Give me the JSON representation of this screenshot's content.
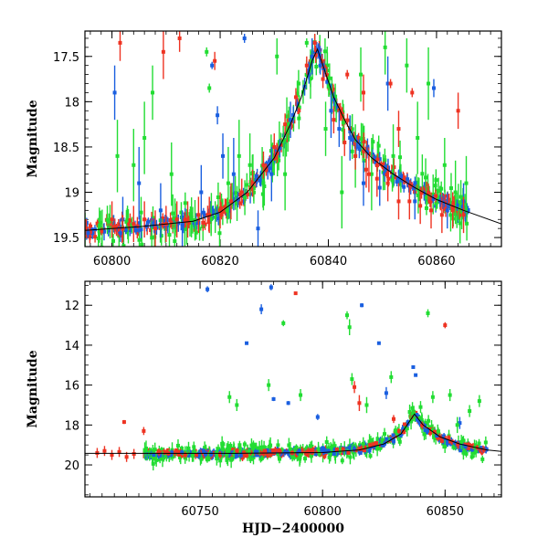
{
  "chart_data": [
    {
      "type": "scatter",
      "title": "",
      "xlabel": "",
      "ylabel": "Magnitude",
      "xlim": [
        60795,
        60872
      ],
      "ylim": [
        19.6,
        17.22
      ],
      "y_inverted": true,
      "xticks": [
        60800,
        60820,
        60840,
        60860
      ],
      "yticks": [
        17.5,
        18,
        18.5,
        19,
        19.5
      ],
      "legend": "none",
      "series": [
        {
          "color": "#1a5fe0",
          "points": [
            {
              "x": 60800.5,
              "y": 17.9,
              "e": 0.3
            },
            {
              "x": 60802.0,
              "y": 19.3,
              "e": 0.25
            },
            {
              "x": 60805.0,
              "y": 18.9,
              "e": 0.4
            },
            {
              "x": 60809.0,
              "y": 19.2,
              "e": 0.3
            },
            {
              "x": 60813.0,
              "y": 19.4,
              "e": 0.2
            },
            {
              "x": 60816.5,
              "y": 19.0,
              "e": 0.3
            },
            {
              "x": 60818.5,
              "y": 17.6,
              "e": 0.04
            },
            {
              "x": 60819.5,
              "y": 18.15,
              "e": 0.1
            },
            {
              "x": 60820.5,
              "y": 18.6,
              "e": 0.25
            },
            {
              "x": 60822.5,
              "y": 18.8,
              "e": 0.4
            },
            {
              "x": 60824.5,
              "y": 17.3,
              "e": 0.05
            },
            {
              "x": 60827.0,
              "y": 19.4,
              "e": 0.2
            },
            {
              "x": 60829.5,
              "y": 18.8,
              "e": 0.3
            },
            {
              "x": 60833.0,
              "y": 18.2,
              "e": 0.2
            },
            {
              "x": 60837.0,
              "y": 17.5,
              "e": 0.2
            },
            {
              "x": 60838.5,
              "y": 17.6,
              "e": 0.1
            },
            {
              "x": 60840.5,
              "y": 18.1,
              "e": 0.3
            },
            {
              "x": 60842.0,
              "y": 18.3,
              "e": 0.2
            },
            {
              "x": 60844.0,
              "y": 18.4,
              "e": 0.25
            },
            {
              "x": 60846.5,
              "y": 18.9,
              "e": 0.25
            },
            {
              "x": 60849.5,
              "y": 18.95,
              "e": 0.2
            },
            {
              "x": 60851.0,
              "y": 17.8,
              "e": 0.3
            },
            {
              "x": 60856.0,
              "y": 19.1,
              "e": 0.2
            },
            {
              "x": 60859.5,
              "y": 17.85,
              "e": 0.1
            },
            {
              "x": 60862.0,
              "y": 19.2,
              "e": 0.2
            },
            {
              "x": 60865.0,
              "y": 19.1,
              "e": 0.2
            }
          ]
        },
        {
          "color": "#22dd33",
          "points": [
            {
              "x": 60801.0,
              "y": 18.6,
              "e": 0.4
            },
            {
              "x": 60804.0,
              "y": 18.7,
              "e": 0.4
            },
            {
              "x": 60806.0,
              "y": 18.4,
              "e": 0.4
            },
            {
              "x": 60807.5,
              "y": 17.9,
              "e": 0.3
            },
            {
              "x": 60811.0,
              "y": 18.8,
              "e": 0.35
            },
            {
              "x": 60817.5,
              "y": 17.45,
              "e": 0.05
            },
            {
              "x": 60818.0,
              "y": 17.85,
              "e": 0.05
            },
            {
              "x": 60821.5,
              "y": 18.9,
              "e": 0.4
            },
            {
              "x": 60823.5,
              "y": 18.6,
              "e": 0.4
            },
            {
              "x": 60825.5,
              "y": 18.7,
              "e": 0.35
            },
            {
              "x": 60828.0,
              "y": 18.9,
              "e": 0.3
            },
            {
              "x": 60830.5,
              "y": 17.5,
              "e": 0.2
            },
            {
              "x": 60832.0,
              "y": 18.8,
              "e": 0.4
            },
            {
              "x": 60834.5,
              "y": 17.8,
              "e": 0.15
            },
            {
              "x": 60836.0,
              "y": 17.35,
              "e": 0.05
            },
            {
              "x": 60839.5,
              "y": 18.3,
              "e": 0.3
            },
            {
              "x": 60842.5,
              "y": 19.0,
              "e": 0.4
            },
            {
              "x": 60845.0,
              "y": 18.6,
              "e": 0.35
            },
            {
              "x": 60846.0,
              "y": 17.7,
              "e": 0.3
            },
            {
              "x": 60848.0,
              "y": 18.8,
              "e": 0.4
            },
            {
              "x": 60850.5,
              "y": 17.4,
              "e": 0.3
            },
            {
              "x": 60852.0,
              "y": 18.6,
              "e": 0.35
            },
            {
              "x": 60854.5,
              "y": 17.6,
              "e": 0.3
            },
            {
              "x": 60856.5,
              "y": 18.4,
              "e": 0.4
            },
            {
              "x": 60858.5,
              "y": 17.8,
              "e": 0.4
            },
            {
              "x": 60861.5,
              "y": 18.7,
              "e": 0.3
            },
            {
              "x": 60863.5,
              "y": 19.0,
              "e": 0.35
            },
            {
              "x": 60865.5,
              "y": 18.9,
              "e": 0.3
            }
          ]
        },
        {
          "color": "#ee3322",
          "points": [
            {
              "x": 60800.0,
              "y": 19.3,
              "e": 0.2
            },
            {
              "x": 60802.0,
              "y": 19.4,
              "e": 0.15
            },
            {
              "x": 60804.0,
              "y": 19.35,
              "e": 0.2
            },
            {
              "x": 60806.0,
              "y": 19.3,
              "e": 0.2
            },
            {
              "x": 60808.0,
              "y": 19.4,
              "e": 0.2
            },
            {
              "x": 60810.0,
              "y": 19.35,
              "e": 0.2
            },
            {
              "x": 60812.0,
              "y": 19.3,
              "e": 0.2
            },
            {
              "x": 60814.0,
              "y": 19.3,
              "e": 0.2
            },
            {
              "x": 60816.0,
              "y": 19.25,
              "e": 0.2
            },
            {
              "x": 60818.0,
              "y": 19.25,
              "e": 0.2
            },
            {
              "x": 60820.0,
              "y": 19.2,
              "e": 0.2
            },
            {
              "x": 60822.0,
              "y": 19.1,
              "e": 0.2
            },
            {
              "x": 60824.0,
              "y": 19.0,
              "e": 0.15
            },
            {
              "x": 60826.0,
              "y": 18.9,
              "e": 0.15
            },
            {
              "x": 60828.0,
              "y": 18.7,
              "e": 0.15
            },
            {
              "x": 60830.0,
              "y": 18.5,
              "e": 0.15
            },
            {
              "x": 60832.0,
              "y": 18.25,
              "e": 0.12
            },
            {
              "x": 60834.0,
              "y": 17.95,
              "e": 0.1
            },
            {
              "x": 60836.0,
              "y": 17.6,
              "e": 0.1
            },
            {
              "x": 60837.5,
              "y": 17.35,
              "e": 0.1
            },
            {
              "x": 60839.0,
              "y": 17.75,
              "e": 0.1
            },
            {
              "x": 60841.0,
              "y": 18.2,
              "e": 0.15
            },
            {
              "x": 60843.0,
              "y": 18.45,
              "e": 0.15
            },
            {
              "x": 60845.0,
              "y": 18.6,
              "e": 0.15
            },
            {
              "x": 60847.0,
              "y": 18.75,
              "e": 0.2
            },
            {
              "x": 60849.0,
              "y": 18.85,
              "e": 0.2
            },
            {
              "x": 60851.0,
              "y": 18.9,
              "e": 0.2
            },
            {
              "x": 60853.0,
              "y": 19.1,
              "e": 0.2
            },
            {
              "x": 60855.0,
              "y": 19.1,
              "e": 0.2
            },
            {
              "x": 60857.0,
              "y": 19.15,
              "e": 0.2
            },
            {
              "x": 60859.0,
              "y": 19.2,
              "e": 0.2
            },
            {
              "x": 60861.0,
              "y": 19.25,
              "e": 0.2
            },
            {
              "x": 60863.0,
              "y": 19.2,
              "e": 0.2
            },
            {
              "x": 60865.0,
              "y": 19.25,
              "e": 0.2
            },
            {
              "x": 60801.5,
              "y": 17.35,
              "e": 0.2
            },
            {
              "x": 60809.5,
              "y": 17.45,
              "e": 0.3
            },
            {
              "x": 60812.5,
              "y": 17.3,
              "e": 0.15
            },
            {
              "x": 60819.0,
              "y": 17.55,
              "e": 0.1
            },
            {
              "x": 60843.5,
              "y": 17.7,
              "e": 0.05
            },
            {
              "x": 60846.5,
              "y": 17.9,
              "e": 0.2
            },
            {
              "x": 60847.5,
              "y": 18.8,
              "e": 0.2
            },
            {
              "x": 60851.5,
              "y": 17.8,
              "e": 0.05
            },
            {
              "x": 60853.0,
              "y": 18.3,
              "e": 0.2
            },
            {
              "x": 60855.5,
              "y": 17.9,
              "e": 0.05
            },
            {
              "x": 60864.0,
              "y": 18.1,
              "e": 0.2
            }
          ]
        }
      ],
      "model_curve": {
        "color": "#000000",
        "x": [
          60795,
          60805,
          60815,
          60820,
          60825,
          60830,
          60833,
          60835,
          60837,
          60838,
          60839,
          60841,
          60843,
          60845,
          60848,
          60852,
          60856,
          60860,
          60865,
          60872
        ],
        "y": [
          19.42,
          19.38,
          19.32,
          19.22,
          19.0,
          18.62,
          18.25,
          17.95,
          17.55,
          17.42,
          17.6,
          17.95,
          18.2,
          18.42,
          18.62,
          18.8,
          18.95,
          19.08,
          19.2,
          19.35
        ]
      }
    },
    {
      "type": "scatter",
      "title": "",
      "xlabel": "HJD−2400000",
      "ylabel": "Magnitude",
      "xlim": [
        60703,
        60873
      ],
      "ylim": [
        21.6,
        10.8
      ],
      "y_inverted": true,
      "xticks": [
        60750,
        60800,
        60850
      ],
      "yticks": [
        12,
        14,
        16,
        18,
        20
      ],
      "legend": "none",
      "series": [
        {
          "color": "#1a5fe0",
          "points": [
            {
              "x": 60753,
              "y": 11.2,
              "e": 0.15
            },
            {
              "x": 60769,
              "y": 13.9,
              "e": 0.05
            },
            {
              "x": 60775,
              "y": 12.2,
              "e": 0.25
            },
            {
              "x": 60779,
              "y": 11.1,
              "e": 0.15
            },
            {
              "x": 60780,
              "y": 16.7,
              "e": 0.1
            },
            {
              "x": 60786,
              "y": 16.9,
              "e": 0.1
            },
            {
              "x": 60798,
              "y": 17.6,
              "e": 0.15
            },
            {
              "x": 60816,
              "y": 12.0,
              "e": 0.1
            },
            {
              "x": 60823,
              "y": 13.9,
              "e": 0.05
            },
            {
              "x": 60826,
              "y": 16.4,
              "e": 0.3
            },
            {
              "x": 60837,
              "y": 15.1,
              "e": 0.05
            },
            {
              "x": 60838,
              "y": 15.5,
              "e": 0.05
            },
            {
              "x": 60856,
              "y": 17.9,
              "e": 0.3
            }
          ]
        },
        {
          "color": "#22dd33",
          "points": [
            {
              "x": 60762,
              "y": 16.6,
              "e": 0.3
            },
            {
              "x": 60765,
              "y": 17.0,
              "e": 0.3
            },
            {
              "x": 60778,
              "y": 16.0,
              "e": 0.3
            },
            {
              "x": 60784,
              "y": 12.9,
              "e": 0.15
            },
            {
              "x": 60791,
              "y": 16.5,
              "e": 0.3
            },
            {
              "x": 60810,
              "y": 12.5,
              "e": 0.2
            },
            {
              "x": 60811,
              "y": 13.1,
              "e": 0.4
            },
            {
              "x": 60812,
              "y": 15.7,
              "e": 0.3
            },
            {
              "x": 60818,
              "y": 17.0,
              "e": 0.4
            },
            {
              "x": 60828,
              "y": 15.6,
              "e": 0.3
            },
            {
              "x": 60840,
              "y": 17.1,
              "e": 0.3
            },
            {
              "x": 60843,
              "y": 12.4,
              "e": 0.2
            },
            {
              "x": 60845,
              "y": 16.6,
              "e": 0.3
            },
            {
              "x": 60852,
              "y": 16.5,
              "e": 0.3
            },
            {
              "x": 60855,
              "y": 18.0,
              "e": 0.4
            },
            {
              "x": 60860,
              "y": 17.3,
              "e": 0.3
            },
            {
              "x": 60864,
              "y": 16.8,
              "e": 0.3
            }
          ]
        },
        {
          "color": "#ee3322",
          "points": [
            {
              "x": 60719,
              "y": 17.85,
              "e": 0.1
            },
            {
              "x": 60727,
              "y": 18.3,
              "e": 0.2
            },
            {
              "x": 60789,
              "y": 11.4,
              "e": 0.05
            },
            {
              "x": 60813,
              "y": 16.1,
              "e": 0.3
            },
            {
              "x": 60815,
              "y": 16.9,
              "e": 0.4
            },
            {
              "x": 60829,
              "y": 17.7,
              "e": 0.2
            },
            {
              "x": 60850,
              "y": 13.0,
              "e": 0.15
            }
          ]
        }
      ],
      "baseline_band": {
        "x": [
          60727,
          60760,
          60800,
          60815,
          60825,
          60832,
          60837.5,
          60841,
          60848,
          60856,
          60867
        ],
        "y": [
          19.45,
          19.42,
          19.35,
          19.22,
          18.9,
          18.4,
          17.45,
          18.05,
          18.65,
          19.05,
          19.25
        ],
        "early_red": [
          [
            60708,
            19.4
          ],
          [
            60711,
            19.3
          ],
          [
            60714,
            19.5
          ],
          [
            60717,
            19.35
          ],
          [
            60720,
            19.6
          ],
          [
            60723,
            19.45
          ]
        ]
      },
      "model_curve": {
        "color": "#000000",
        "x": [
          60703,
          60727,
          60760,
          60800,
          60815,
          60825,
          60832,
          60837.5,
          60841,
          60848,
          60856,
          60867,
          60873
        ],
        "y": [
          19.42,
          19.42,
          19.42,
          19.38,
          19.25,
          18.95,
          18.45,
          17.45,
          18.0,
          18.6,
          18.95,
          19.25,
          19.32
        ]
      }
    }
  ]
}
